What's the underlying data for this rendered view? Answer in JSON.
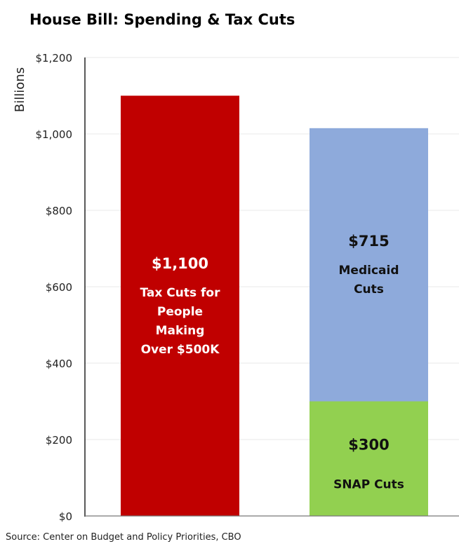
{
  "chart_data": {
    "type": "bar",
    "stacked": true,
    "title": "House Bill: Spending & Tax Cuts",
    "ylabel": "Billions",
    "xlabel": "",
    "ylim": [
      0,
      1200
    ],
    "yticks": [
      0,
      200,
      400,
      600,
      800,
      1000,
      1200
    ],
    "ytick_labels": [
      "$0",
      "$200",
      "$400",
      "$600",
      "$800",
      "$1,000",
      "$1,200"
    ],
    "grid": true,
    "bars": [
      {
        "segments": [
          {
            "name": "Tax Cuts for People Making Over $500K",
            "value": 1100,
            "value_label": "$1,100",
            "label_lines": [
              "Tax Cuts for",
              "People",
              "Making",
              "Over $500K"
            ],
            "color": "#c00000",
            "text_color": "#ffffff"
          }
        ]
      },
      {
        "segments": [
          {
            "name": "SNAP Cuts",
            "value": 300,
            "value_label": "$300",
            "label_lines": [
              "SNAP Cuts"
            ],
            "color": "#92d050",
            "text_color": "#111111"
          },
          {
            "name": "Medicaid Cuts",
            "value": 715,
            "value_label": "$715",
            "label_lines": [
              "Medicaid",
              "Cuts"
            ],
            "color": "#8eaadb",
            "text_color": "#111111"
          }
        ]
      }
    ],
    "source": "Source: Center on Budget and Policy Priorities, CBO"
  }
}
